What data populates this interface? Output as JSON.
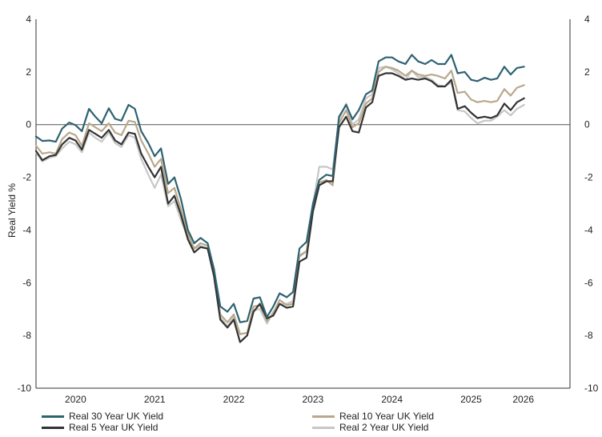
{
  "chart_data": {
    "type": "line",
    "title": "",
    "xlabel": "",
    "ylabel": "Real Yield %",
    "ylim": [
      -10,
      4
    ],
    "yticks": [
      "4",
      "2",
      "0",
      "-2",
      "-4",
      "-6",
      "-8",
      "-10"
    ],
    "xlim": [
      2019.5,
      2026.25
    ],
    "xticks": [
      {
        "label": "2020",
        "x": 2020.0
      },
      {
        "label": "2021",
        "x": 2021.0
      },
      {
        "label": "2022",
        "x": 2022.0
      },
      {
        "label": "2023",
        "x": 2023.0
      },
      {
        "label": "2024",
        "x": 2024.0
      },
      {
        "label": "2025",
        "x": 2025.0
      },
      {
        "label": "2026",
        "x": 2025.66
      }
    ],
    "zero_line": true,
    "legend_position": "bottom",
    "x": [
      2019.5,
      2019.58,
      2019.67,
      2019.75,
      2019.83,
      2019.92,
      2020.0,
      2020.08,
      2020.17,
      2020.25,
      2020.33,
      2020.42,
      2020.5,
      2020.58,
      2020.67,
      2020.75,
      2020.83,
      2020.92,
      2021.0,
      2021.08,
      2021.17,
      2021.25,
      2021.33,
      2021.42,
      2021.5,
      2021.58,
      2021.67,
      2021.75,
      2021.83,
      2021.92,
      2022.0,
      2022.08,
      2022.17,
      2022.25,
      2022.33,
      2022.42,
      2022.5,
      2022.58,
      2022.67,
      2022.75,
      2022.83,
      2022.92,
      2023.0,
      2023.08,
      2023.17,
      2023.25,
      2023.33,
      2023.42,
      2023.5,
      2023.58,
      2023.67,
      2023.75,
      2023.83,
      2023.92,
      2024.0,
      2024.08,
      2024.17,
      2024.25,
      2024.33,
      2024.42,
      2024.5,
      2024.58,
      2024.67,
      2024.75,
      2024.83,
      2024.92,
      2025.0,
      2025.08,
      2025.17,
      2025.25,
      2025.33,
      2025.42,
      2025.5,
      2025.58,
      2025.67
    ],
    "series": [
      {
        "name": "Real 30 Year UK Yield",
        "color": "#2e6272",
        "width": 2.2,
        "values": [
          -0.45,
          -0.62,
          -0.6,
          -0.65,
          -0.15,
          0.08,
          -0.02,
          -0.25,
          0.6,
          0.3,
          0.05,
          0.62,
          0.22,
          0.15,
          0.75,
          0.6,
          -0.25,
          -0.7,
          -1.2,
          -0.9,
          -2.25,
          -2.0,
          -2.8,
          -4.0,
          -4.5,
          -4.3,
          -4.5,
          -5.5,
          -6.9,
          -7.1,
          -6.8,
          -7.5,
          -7.45,
          -6.6,
          -6.55,
          -7.3,
          -6.9,
          -6.4,
          -6.55,
          -6.35,
          -4.7,
          -4.45,
          -3.0,
          -2.1,
          -1.9,
          -1.95,
          0.3,
          0.75,
          0.2,
          0.55,
          1.15,
          1.3,
          2.4,
          2.55,
          2.55,
          2.4,
          2.3,
          2.65,
          2.4,
          2.3,
          2.45,
          2.3,
          2.3,
          2.65,
          1.95,
          2.0,
          1.7,
          1.65,
          1.78,
          1.7,
          1.75,
          2.2,
          1.9,
          2.15,
          2.2
        ]
      },
      {
        "name": "Real 10 Year UK Yield",
        "color": "#b9a88a",
        "width": 2.2,
        "values": [
          -0.8,
          -1.1,
          -1.05,
          -1.1,
          -0.55,
          -0.3,
          -0.4,
          -0.8,
          0.05,
          -0.1,
          -0.25,
          0.05,
          -0.3,
          -0.4,
          0.15,
          0.1,
          -0.6,
          -1.1,
          -1.6,
          -1.3,
          -2.6,
          -2.4,
          -3.2,
          -4.15,
          -4.7,
          -4.5,
          -4.6,
          -5.45,
          -7.2,
          -7.5,
          -7.2,
          -7.95,
          -7.9,
          -6.9,
          -6.85,
          -7.45,
          -7.15,
          -6.65,
          -6.85,
          -6.8,
          -5.0,
          -4.8,
          -3.2,
          -2.2,
          -2.1,
          -2.3,
          0.05,
          0.55,
          -0.1,
          0.05,
          0.8,
          1.0,
          2.0,
          2.2,
          2.15,
          2.05,
          1.85,
          2.05,
          1.9,
          1.85,
          1.9,
          1.85,
          1.75,
          2.05,
          1.2,
          1.25,
          0.95,
          0.85,
          0.9,
          0.85,
          0.9,
          1.35,
          1.1,
          1.4,
          1.5
        ]
      },
      {
        "name": "Real 5 Year UK Yield",
        "color": "#333333",
        "width": 2.2,
        "values": [
          -1.0,
          -1.35,
          -1.2,
          -1.15,
          -0.75,
          -0.5,
          -0.6,
          -0.95,
          -0.2,
          -0.35,
          -0.5,
          -0.2,
          -0.6,
          -0.75,
          -0.3,
          -0.35,
          -1.1,
          -1.6,
          -2.0,
          -1.6,
          -3.0,
          -2.7,
          -3.4,
          -4.35,
          -4.85,
          -4.65,
          -4.7,
          -5.75,
          -7.4,
          -7.7,
          -7.4,
          -8.25,
          -8.0,
          -7.1,
          -6.8,
          -7.35,
          -7.25,
          -6.8,
          -6.95,
          -6.9,
          -5.2,
          -5.05,
          -3.3,
          -2.3,
          -2.15,
          -2.15,
          -0.1,
          0.3,
          -0.25,
          -0.3,
          0.65,
          0.85,
          1.85,
          1.95,
          1.95,
          1.85,
          1.7,
          1.75,
          1.7,
          1.75,
          1.65,
          1.45,
          1.45,
          1.7,
          0.6,
          0.7,
          0.45,
          0.25,
          0.3,
          0.25,
          0.35,
          0.8,
          0.55,
          0.85,
          1.0
        ]
      },
      {
        "name": "Real 2 Year UK Yield",
        "color": "#c7c7c7",
        "width": 2.2,
        "values": [
          -1.05,
          -1.4,
          -1.25,
          -1.2,
          -0.9,
          -0.65,
          -0.75,
          -1.05,
          -0.3,
          -0.5,
          -0.65,
          -0.3,
          -0.7,
          -0.85,
          -0.4,
          -0.5,
          -1.3,
          -1.9,
          -2.4,
          -1.9,
          -3.1,
          -2.9,
          -3.6,
          -4.3,
          -4.7,
          -4.6,
          -4.7,
          -5.6,
          -7.3,
          -7.65,
          -7.3,
          -7.95,
          -7.9,
          -7.05,
          -7.0,
          -7.55,
          -7.1,
          -6.8,
          -6.8,
          -6.7,
          -4.95,
          -4.8,
          -3.05,
          -1.6,
          -1.6,
          -1.7,
          0.2,
          0.8,
          0.0,
          0.2,
          1.0,
          1.15,
          2.15,
          2.2,
          2.1,
          1.95,
          1.7,
          2.05,
          1.8,
          1.8,
          1.7,
          1.5,
          1.45,
          1.6,
          0.55,
          0.5,
          0.25,
          0.05,
          0.15,
          0.15,
          0.3,
          0.55,
          0.35,
          0.6,
          0.75
        ]
      }
    ]
  },
  "legend": [
    {
      "label": "Real 30 Year UK Yield",
      "color": "#2e6272"
    },
    {
      "label": "Real 10 Year UK Yield",
      "color": "#b9a88a"
    },
    {
      "label": "Real 5 Year UK Yield",
      "color": "#333333"
    },
    {
      "label": "Real 2 Year UK Yield",
      "color": "#c7c7c7"
    }
  ]
}
